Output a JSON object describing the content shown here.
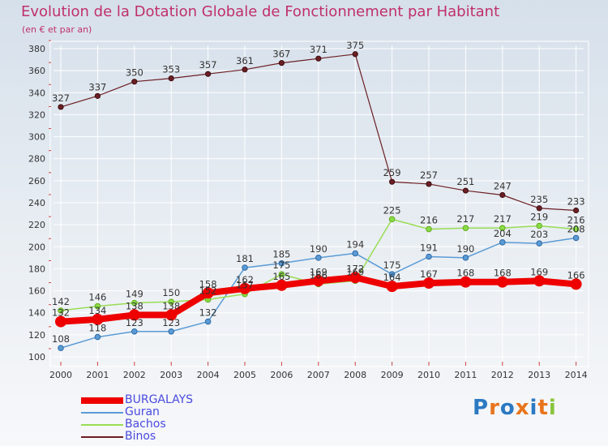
{
  "header": {
    "title": "Evolution de la Dotation Globale de Fonctionnement par Habitant",
    "subtitle": "(en € et par an)"
  },
  "logo": {
    "text": "Proxiti"
  },
  "colors": {
    "title": "#c0306a",
    "axis_text": "#333333",
    "BURGALAYS": "#ee0000",
    "Guran": "#5b9bd5",
    "Bachos": "#99dd55",
    "Binos": "#6b1f24"
  },
  "chart_data": {
    "type": "line",
    "title": "Evolution de la Dotation Globale de Fonctionnement par Habitant",
    "subtitle": "(en € et par an)",
    "xlabel": "",
    "ylabel": "",
    "ylim": [
      100,
      380
    ],
    "yticks": [
      100,
      120,
      140,
      160,
      180,
      200,
      220,
      240,
      260,
      280,
      300,
      320,
      340,
      360,
      380
    ],
    "categories": [
      "2000",
      "2001",
      "2002",
      "2003",
      "2004",
      "2005",
      "2006",
      "2007",
      "2008",
      "2009",
      "2010",
      "2011",
      "2012",
      "2013",
      "2014"
    ],
    "grid": true,
    "legend_position": "bottom-left",
    "series": [
      {
        "name": "BURGALAYS",
        "values": [
          132,
          134,
          138,
          138,
          158,
          162,
          165,
          169,
          172,
          164,
          167,
          168,
          168,
          169,
          166
        ]
      },
      {
        "name": "Guran",
        "values": [
          108,
          118,
          123,
          123,
          132,
          181,
          185,
          190,
          194,
          175,
          191,
          190,
          204,
          203,
          208
        ]
      },
      {
        "name": "Bachos",
        "values": [
          142,
          146,
          149,
          150,
          152,
          157,
          175,
          166,
          169,
          225,
          216,
          217,
          217,
          219,
          216
        ]
      },
      {
        "name": "Binos",
        "values": [
          327,
          337,
          350,
          353,
          357,
          361,
          367,
          371,
          375,
          259,
          257,
          251,
          247,
          235,
          233
        ]
      }
    ]
  }
}
